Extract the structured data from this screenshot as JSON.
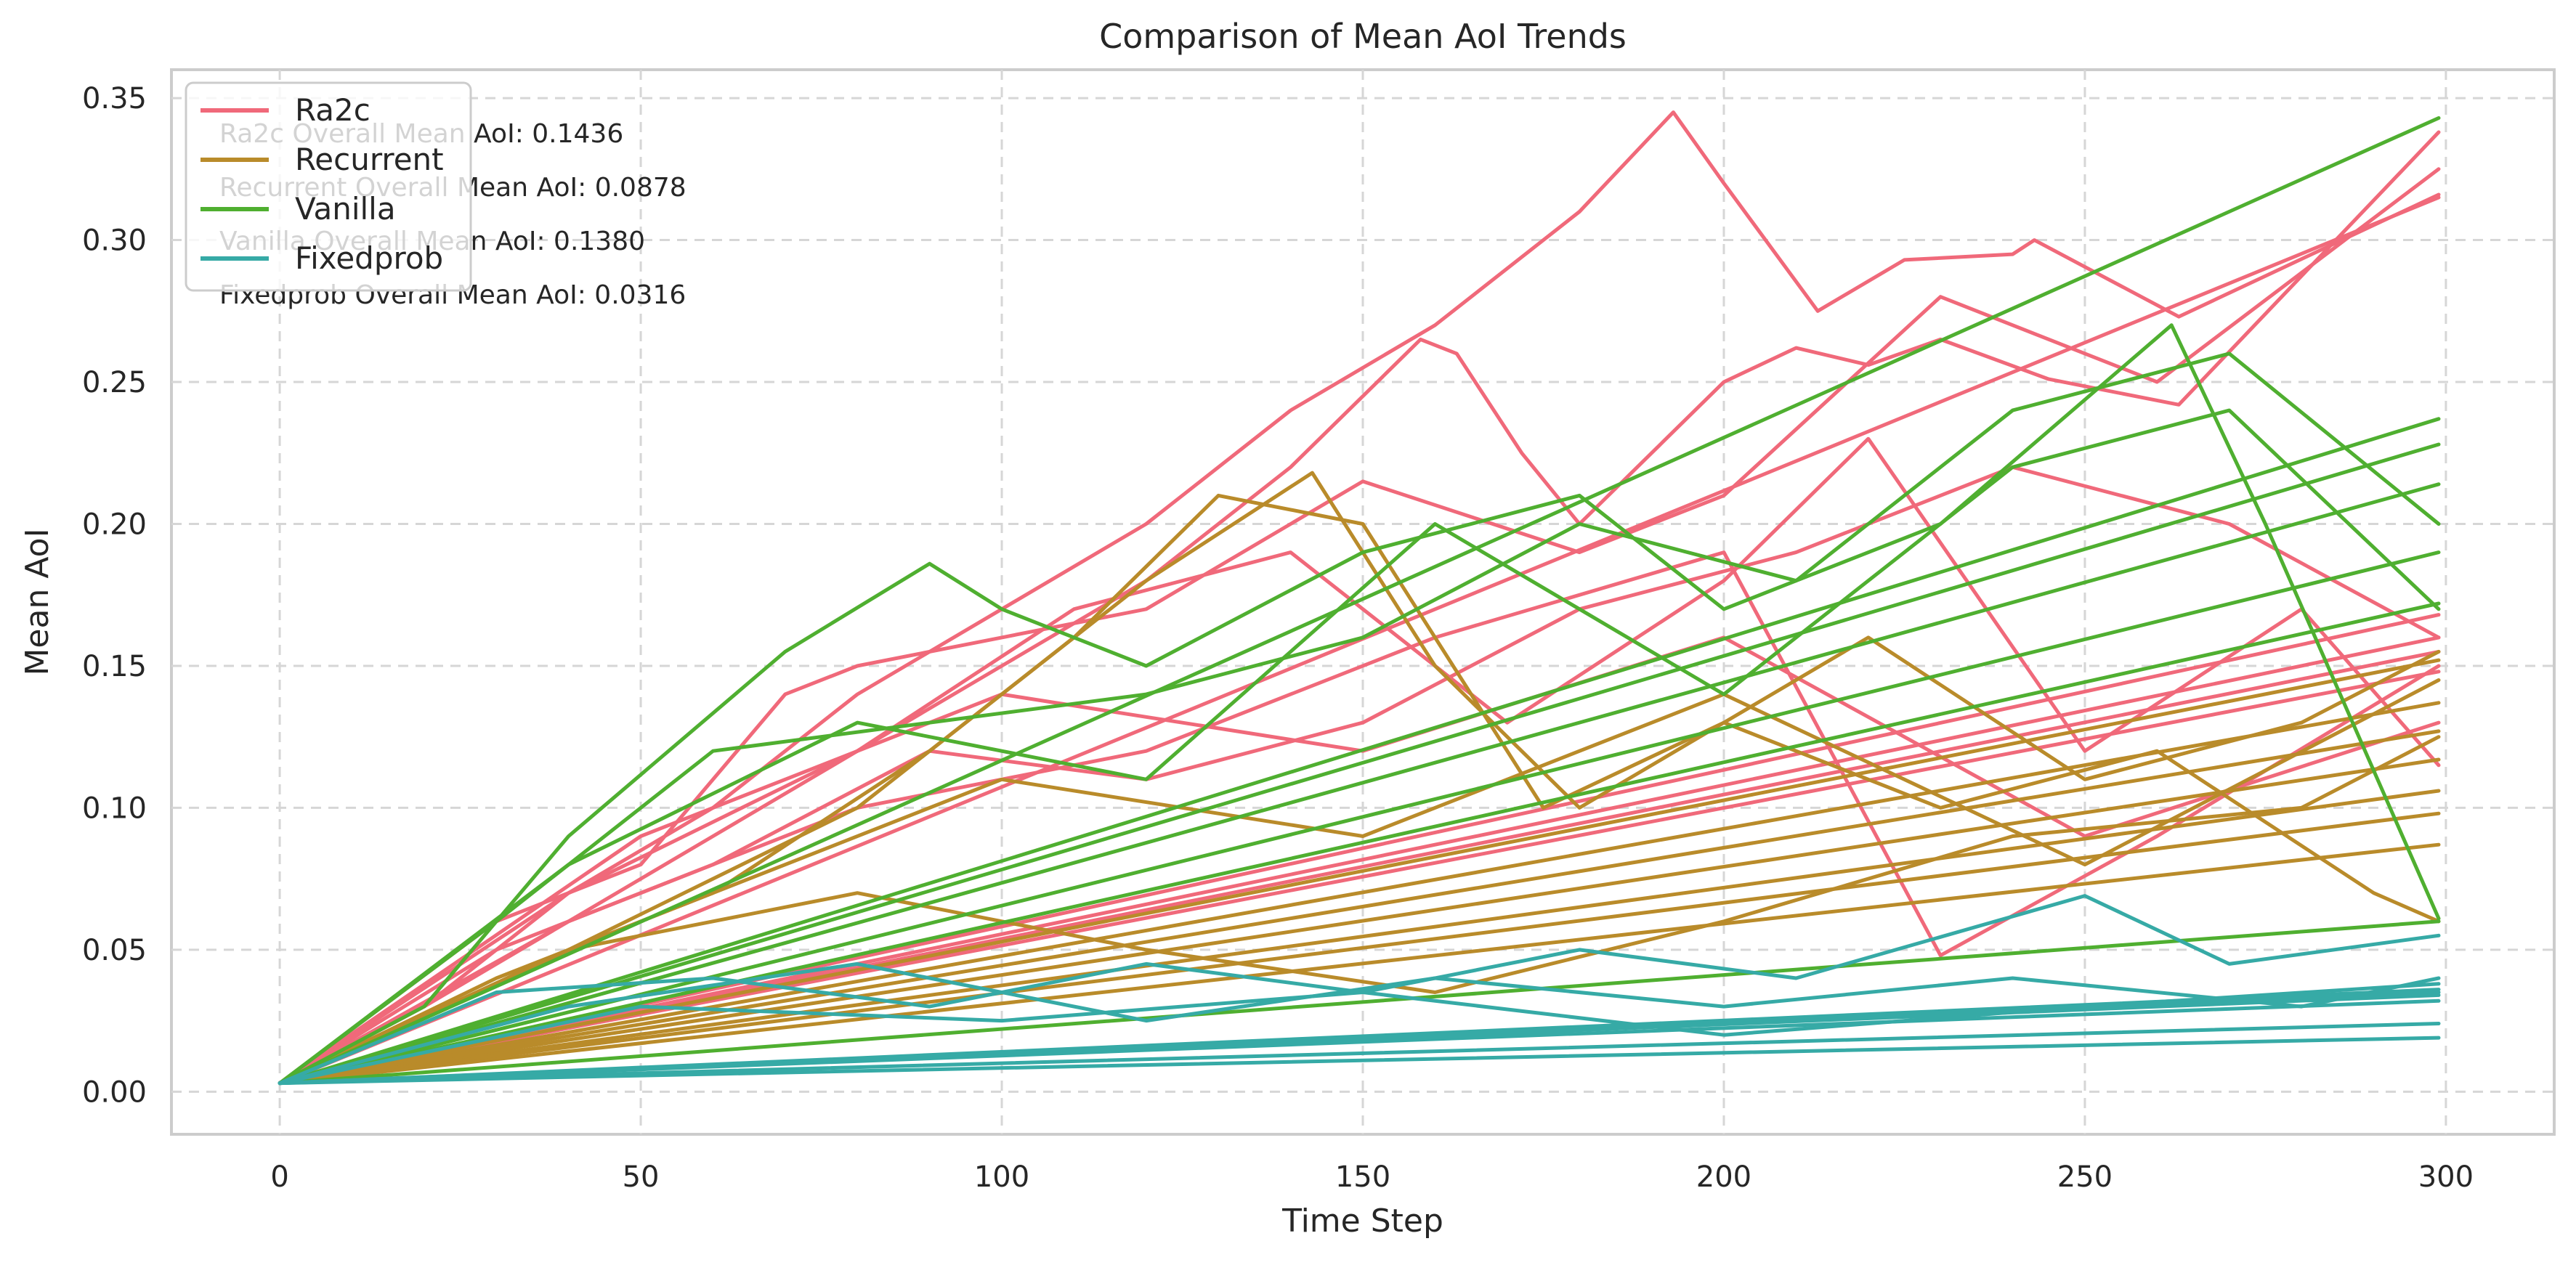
{
  "chart_data": {
    "type": "line",
    "title": "Comparison of Mean AoI Trends",
    "xlabel": "Time Step",
    "ylabel": "Mean AoI",
    "xlim": [
      -15,
      315
    ],
    "ylim": [
      -0.015,
      0.36
    ],
    "xticks": [
      0,
      50,
      100,
      150,
      200,
      250,
      300
    ],
    "yticks": [
      0.0,
      0.05,
      0.1,
      0.15,
      0.2,
      0.25,
      0.3,
      0.35
    ],
    "ytick_labels": [
      "0.00",
      "0.05",
      "0.10",
      "0.15",
      "0.20",
      "0.25",
      "0.30",
      "0.35"
    ],
    "grid": true,
    "legend_placement": "top-left",
    "legend": [
      {
        "name": "Ra2c",
        "color": "#f0697a"
      },
      {
        "name": "Recurrent",
        "color": "#b98b2a"
      },
      {
        "name": "Vanilla",
        "color": "#4faf30"
      },
      {
        "name": "Fixedprob",
        "color": "#36aaa6"
      }
    ],
    "annotations": [
      "Ra2c Overall Mean AoI: 0.1436",
      "Recurrent Overall Mean AoI: 0.0878",
      "Vanilla Overall Mean AoI: 0.1380",
      "Fixedprob Overall Mean AoI: 0.0316"
    ],
    "series": [
      {
        "group": "Ra2c",
        "color": "#f0697a",
        "x": [
          0,
          20,
          40,
          60,
          80,
          100,
          120,
          140,
          160,
          180,
          193,
          200,
          213,
          225,
          240,
          243,
          263,
          299
        ],
        "y": [
          0.003,
          0.03,
          0.07,
          0.1,
          0.14,
          0.17,
          0.2,
          0.24,
          0.27,
          0.31,
          0.345,
          0.32,
          0.275,
          0.293,
          0.295,
          0.3,
          0.273,
          0.316
        ]
      },
      {
        "group": "Ra2c",
        "color": "#f0697a",
        "x": [
          0,
          20,
          40,
          60,
          80,
          100,
          120,
          140,
          158,
          163,
          172,
          180,
          200,
          210,
          220,
          230,
          245,
          263,
          299
        ],
        "y": [
          0.003,
          0.03,
          0.06,
          0.09,
          0.12,
          0.15,
          0.18,
          0.22,
          0.265,
          0.26,
          0.225,
          0.2,
          0.25,
          0.262,
          0.256,
          0.265,
          0.251,
          0.242,
          0.338
        ]
      },
      {
        "group": "Ra2c",
        "color": "#f0697a",
        "x": [
          0,
          30,
          50,
          70,
          80,
          100,
          120,
          150,
          180,
          200,
          230,
          260,
          299
        ],
        "y": [
          0.003,
          0.06,
          0.08,
          0.14,
          0.15,
          0.16,
          0.17,
          0.215,
          0.19,
          0.21,
          0.28,
          0.25,
          0.325
        ]
      },
      {
        "group": "Ra2c",
        "color": "#f0697a",
        "x": [
          0,
          30,
          60,
          90,
          120,
          150,
          180,
          210,
          240,
          270,
          299
        ],
        "y": [
          0.003,
          0.05,
          0.08,
          0.12,
          0.11,
          0.13,
          0.17,
          0.19,
          0.22,
          0.2,
          0.16
        ]
      },
      {
        "group": "Ra2c",
        "color": "#f0697a",
        "x": [
          0,
          299
        ],
        "y": [
          0.003,
          0.315
        ]
      },
      {
        "group": "Ra2c",
        "color": "#f0697a",
        "x": [
          0,
          299
        ],
        "y": [
          0.003,
          0.168
        ]
      },
      {
        "group": "Ra2c",
        "color": "#f0697a",
        "x": [
          0,
          299
        ],
        "y": [
          0.003,
          0.16
        ]
      },
      {
        "group": "Ra2c",
        "color": "#f0697a",
        "x": [
          0,
          299
        ],
        "y": [
          0.003,
          0.155
        ]
      },
      {
        "group": "Ra2c",
        "color": "#f0697a",
        "x": [
          0,
          299
        ],
        "y": [
          0.003,
          0.148
        ]
      },
      {
        "group": "Ra2c",
        "color": "#f0697a",
        "x": [
          0,
          40,
          80,
          120,
          160,
          200,
          230,
          260,
          299
        ],
        "y": [
          0.003,
          0.06,
          0.1,
          0.12,
          0.16,
          0.19,
          0.048,
          0.09,
          0.15
        ]
      },
      {
        "group": "Ra2c",
        "color": "#f0697a",
        "x": [
          0,
          40,
          80,
          110,
          140,
          170,
          200,
          220,
          250,
          280,
          299
        ],
        "y": [
          0.003,
          0.07,
          0.12,
          0.17,
          0.19,
          0.13,
          0.18,
          0.23,
          0.12,
          0.17,
          0.115
        ]
      },
      {
        "group": "Ra2c",
        "color": "#f0697a",
        "x": [
          0,
          50,
          100,
          150,
          200,
          250,
          299
        ],
        "y": [
          0.003,
          0.09,
          0.14,
          0.12,
          0.16,
          0.09,
          0.13
        ]
      },
      {
        "group": "Recurrent",
        "color": "#b98b2a",
        "x": [
          0,
          30,
          60,
          90,
          120,
          143,
          160,
          180,
          200,
          220,
          250,
          280,
          299
        ],
        "y": [
          0.003,
          0.04,
          0.07,
          0.12,
          0.18,
          0.218,
          0.15,
          0.1,
          0.13,
          0.16,
          0.11,
          0.13,
          0.155
        ]
      },
      {
        "group": "Recurrent",
        "color": "#b98b2a",
        "x": [
          0,
          40,
          80,
          110,
          130,
          150,
          175,
          200,
          230,
          260,
          290,
          299
        ],
        "y": [
          0.003,
          0.05,
          0.1,
          0.16,
          0.21,
          0.2,
          0.1,
          0.13,
          0.1,
          0.12,
          0.07,
          0.06
        ]
      },
      {
        "group": "Recurrent",
        "color": "#b98b2a",
        "x": [
          0,
          299
        ],
        "y": [
          0.003,
          0.152
        ]
      },
      {
        "group": "Recurrent",
        "color": "#b98b2a",
        "x": [
          0,
          299
        ],
        "y": [
          0.003,
          0.137
        ]
      },
      {
        "group": "Recurrent",
        "color": "#b98b2a",
        "x": [
          0,
          299
        ],
        "y": [
          0.003,
          0.127
        ]
      },
      {
        "group": "Recurrent",
        "color": "#b98b2a",
        "x": [
          0,
          299
        ],
        "y": [
          0.003,
          0.117
        ]
      },
      {
        "group": "Recurrent",
        "color": "#b98b2a",
        "x": [
          0,
          299
        ],
        "y": [
          0.003,
          0.106
        ]
      },
      {
        "group": "Recurrent",
        "color": "#b98b2a",
        "x": [
          0,
          299
        ],
        "y": [
          0.003,
          0.098
        ]
      },
      {
        "group": "Recurrent",
        "color": "#b98b2a",
        "x": [
          0,
          299
        ],
        "y": [
          0.003,
          0.087
        ]
      },
      {
        "group": "Recurrent",
        "color": "#b98b2a",
        "x": [
          0,
          40,
          80,
          120,
          160,
          200,
          240,
          280,
          299
        ],
        "y": [
          0.003,
          0.05,
          0.07,
          0.05,
          0.035,
          0.06,
          0.09,
          0.1,
          0.125
        ]
      },
      {
        "group": "Recurrent",
        "color": "#b98b2a",
        "x": [
          0,
          50,
          100,
          150,
          200,
          250,
          299
        ],
        "y": [
          0.003,
          0.06,
          0.11,
          0.09,
          0.14,
          0.08,
          0.145
        ]
      },
      {
        "group": "Vanilla",
        "color": "#4faf30",
        "x": [
          0,
          20,
          40,
          70,
          90,
          100,
          120,
          150,
          180,
          200,
          230,
          262,
          275,
          299
        ],
        "y": [
          0.003,
          0.03,
          0.09,
          0.155,
          0.186,
          0.17,
          0.15,
          0.19,
          0.21,
          0.17,
          0.2,
          0.27,
          0.2,
          0.061
        ]
      },
      {
        "group": "Vanilla",
        "color": "#4faf30",
        "x": [
          0,
          299
        ],
        "y": [
          0.003,
          0.343
        ]
      },
      {
        "group": "Vanilla",
        "color": "#4faf30",
        "x": [
          0,
          299
        ],
        "y": [
          0.003,
          0.237
        ]
      },
      {
        "group": "Vanilla",
        "color": "#4faf30",
        "x": [
          0,
          299
        ],
        "y": [
          0.003,
          0.228
        ]
      },
      {
        "group": "Vanilla",
        "color": "#4faf30",
        "x": [
          0,
          299
        ],
        "y": [
          0.003,
          0.214
        ]
      },
      {
        "group": "Vanilla",
        "color": "#4faf30",
        "x": [
          0,
          299
        ],
        "y": [
          0.003,
          0.19
        ]
      },
      {
        "group": "Vanilla",
        "color": "#4faf30",
        "x": [
          0,
          299
        ],
        "y": [
          0.003,
          0.172
        ]
      },
      {
        "group": "Vanilla",
        "color": "#4faf30",
        "x": [
          0,
          299
        ],
        "y": [
          0.003,
          0.06
        ]
      },
      {
        "group": "Vanilla",
        "color": "#4faf30",
        "x": [
          0,
          30,
          60,
          90,
          120,
          150,
          180,
          210,
          240,
          270,
          299
        ],
        "y": [
          0.003,
          0.06,
          0.12,
          0.13,
          0.14,
          0.16,
          0.2,
          0.18,
          0.24,
          0.26,
          0.2
        ]
      },
      {
        "group": "Vanilla",
        "color": "#4faf30",
        "x": [
          0,
          40,
          80,
          120,
          160,
          200,
          240,
          270,
          299
        ],
        "y": [
          0.003,
          0.08,
          0.13,
          0.11,
          0.2,
          0.14,
          0.22,
          0.24,
          0.17
        ]
      },
      {
        "group": "Fixedprob",
        "color": "#36aaa6",
        "x": [
          0,
          30,
          60,
          90,
          120,
          150,
          180,
          210,
          250,
          270,
          299
        ],
        "y": [
          0.003,
          0.035,
          0.04,
          0.03,
          0.045,
          0.035,
          0.05,
          0.04,
          0.069,
          0.045,
          0.055
        ]
      },
      {
        "group": "Fixedprob",
        "color": "#36aaa6",
        "x": [
          0,
          40,
          80,
          120,
          160,
          200,
          240,
          280,
          299
        ],
        "y": [
          0.003,
          0.03,
          0.045,
          0.025,
          0.04,
          0.03,
          0.04,
          0.03,
          0.04
        ]
      },
      {
        "group": "Fixedprob",
        "color": "#36aaa6",
        "x": [
          0,
          299
        ],
        "y": [
          0.003,
          0.035
        ]
      },
      {
        "group": "Fixedprob",
        "color": "#36aaa6",
        "x": [
          0,
          299
        ],
        "y": [
          0.003,
          0.034
        ]
      },
      {
        "group": "Fixedprob",
        "color": "#36aaa6",
        "x": [
          0,
          299
        ],
        "y": [
          0.003,
          0.032
        ]
      },
      {
        "group": "Fixedprob",
        "color": "#36aaa6",
        "x": [
          0,
          299
        ],
        "y": [
          0.003,
          0.036
        ]
      },
      {
        "group": "Fixedprob",
        "color": "#36aaa6",
        "x": [
          0,
          299
        ],
        "y": [
          0.003,
          0.019
        ]
      },
      {
        "group": "Fixedprob",
        "color": "#36aaa6",
        "x": [
          0,
          299
        ],
        "y": [
          0.003,
          0.024
        ]
      },
      {
        "group": "Fixedprob",
        "color": "#36aaa6",
        "x": [
          0,
          50,
          100,
          150,
          200,
          250,
          299
        ],
        "y": [
          0.003,
          0.03,
          0.025,
          0.035,
          0.02,
          0.03,
          0.038
        ]
      }
    ]
  }
}
